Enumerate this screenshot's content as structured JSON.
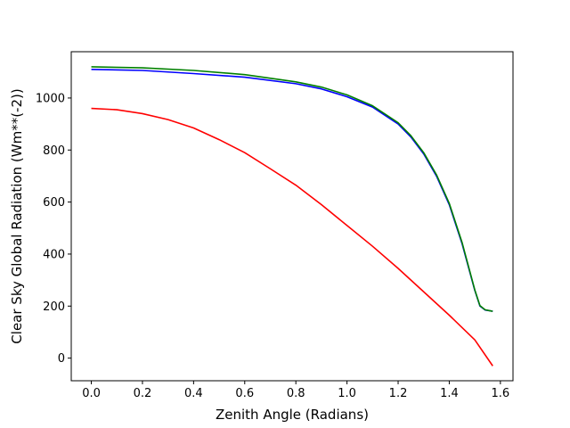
{
  "chart_data": {
    "type": "line",
    "title": "",
    "xlabel": "Zenith Angle (Radians)",
    "ylabel": "Clear Sky Global Radiation (Wm**(-2))",
    "xlim": [
      -0.0785,
      1.6493
    ],
    "ylim": [
      -87,
      1178
    ],
    "xticks": [
      0.0,
      0.2,
      0.4,
      0.6,
      0.8,
      1.0,
      1.2,
      1.4,
      1.6
    ],
    "xtick_labels": [
      "0.0",
      "0.2",
      "0.4",
      "0.6",
      "0.8",
      "1.0",
      "1.2",
      "1.4",
      "1.6"
    ],
    "yticks": [
      0,
      200,
      400,
      600,
      800,
      1000
    ],
    "ytick_labels": [
      "0",
      "200",
      "400",
      "600",
      "800",
      "1000"
    ],
    "grid": false,
    "legend": "none",
    "series": [
      {
        "color": "#ff0000",
        "x": [
          0.0,
          0.1,
          0.2,
          0.3,
          0.4,
          0.5,
          0.6,
          0.7,
          0.8,
          0.9,
          1.0,
          1.1,
          1.2,
          1.3,
          1.4,
          1.5,
          1.57
        ],
        "y": [
          960,
          955,
          940,
          917,
          885,
          840,
          790,
          728,
          665,
          590,
          510,
          430,
          345,
          255,
          165,
          70,
          -30
        ]
      },
      {
        "color": "#0000ff",
        "x": [
          0.0,
          0.2,
          0.4,
          0.6,
          0.8,
          0.9,
          1.0,
          1.1,
          1.2,
          1.25,
          1.3,
          1.35,
          1.4,
          1.45,
          1.5,
          1.52,
          1.54,
          1.56,
          1.57
        ],
        "y": [
          1110,
          1106,
          1094,
          1080,
          1055,
          1035,
          1005,
          965,
          900,
          850,
          785,
          700,
          590,
          440,
          260,
          200,
          185,
          182,
          180
        ]
      },
      {
        "color": "#008000",
        "x": [
          0.0,
          0.2,
          0.4,
          0.6,
          0.8,
          0.9,
          1.0,
          1.1,
          1.2,
          1.25,
          1.3,
          1.35,
          1.4,
          1.45,
          1.5,
          1.52,
          1.54,
          1.56,
          1.57
        ],
        "y": [
          1120,
          1116,
          1106,
          1090,
          1062,
          1042,
          1012,
          970,
          905,
          855,
          790,
          705,
          595,
          445,
          262,
          202,
          186,
          182,
          180
        ]
      }
    ]
  }
}
